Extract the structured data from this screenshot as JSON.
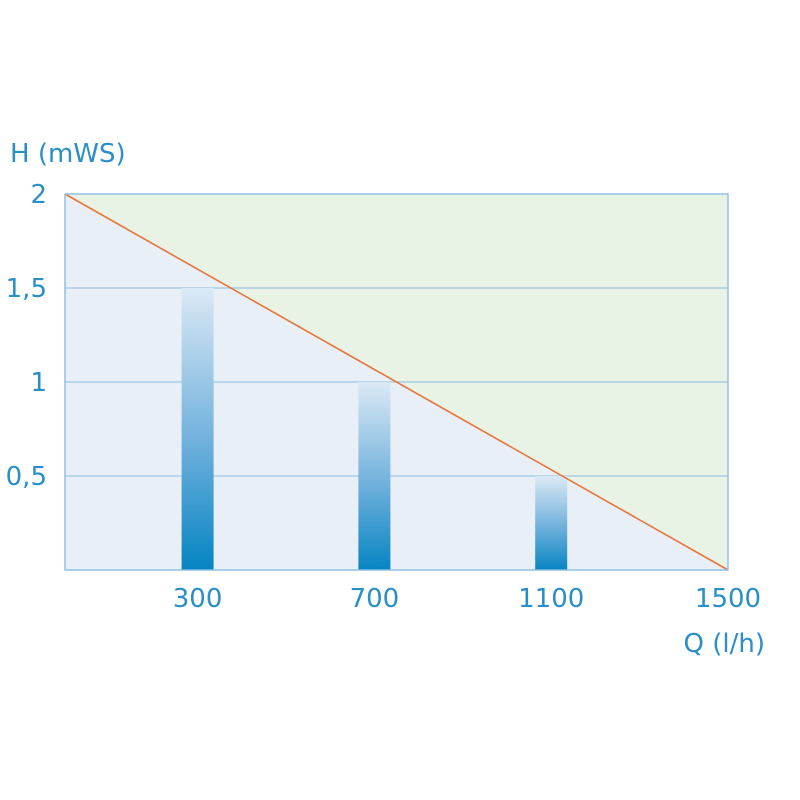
{
  "chart_data": {
    "type": "bar",
    "ylabel": "H (mWS)",
    "xlabel": "Q (l/h)",
    "x_ticks": [
      "300",
      "700",
      "1100",
      "1500"
    ],
    "y_ticks": [
      "0,5",
      "1",
      "1,5",
      "2"
    ],
    "y_tick_values": [
      0.5,
      1,
      1.5,
      2
    ],
    "x_tick_values": [
      300,
      700,
      1100,
      1500
    ],
    "xlim": [
      0,
      1500
    ],
    "ylim": [
      0,
      2
    ],
    "grid": true,
    "bars": [
      {
        "x": 300,
        "value": 1.5
      },
      {
        "x": 700,
        "value": 1.0
      },
      {
        "x": 1100,
        "value": 0.5
      }
    ],
    "line": {
      "x": [
        0,
        1500
      ],
      "y": [
        2,
        0
      ]
    },
    "colors": {
      "text": "#2a8ec8",
      "line": "#e8743a",
      "grid": "#9cc6e6",
      "frame": "#8bbde3",
      "below_line": "#e9eff7",
      "above_line": "#e9f3e5",
      "bar_top": "#dbe9f5",
      "bar_bottom": "#0585c2"
    }
  }
}
